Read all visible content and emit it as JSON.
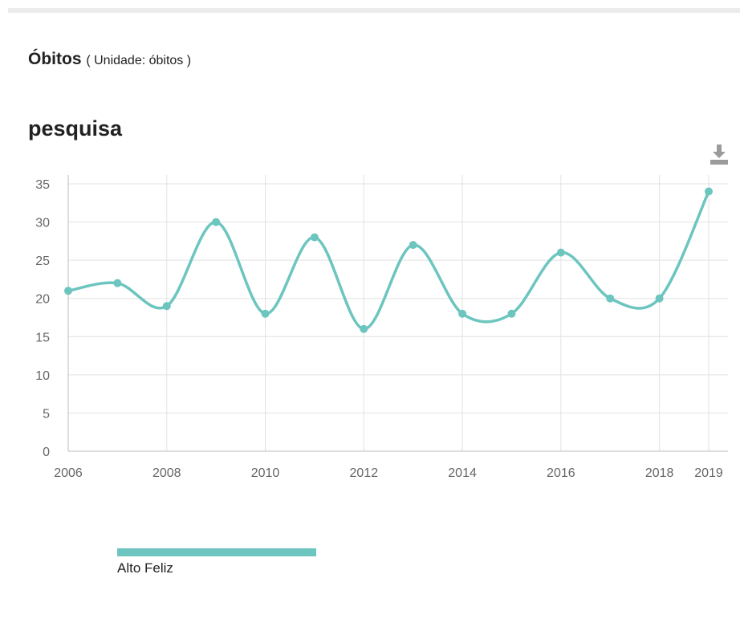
{
  "header": {
    "title": "Óbitos",
    "unit": "( Unidade: óbitos )"
  },
  "section": {
    "subtitle": "pesquisa"
  },
  "icons": {
    "download": "download-icon"
  },
  "colors": {
    "series": "#6cc5bf",
    "grid": "#e2e2e2",
    "axis": "#bdbdbd"
  },
  "chart_data": {
    "type": "line",
    "x": [
      2006,
      2007,
      2008,
      2009,
      2010,
      2011,
      2012,
      2013,
      2014,
      2015,
      2016,
      2017,
      2018,
      2019
    ],
    "series": [
      {
        "name": "Alto Feliz",
        "values": [
          21,
          22,
          19,
          30,
          18,
          28,
          16,
          27,
          18,
          18,
          26,
          20,
          20,
          34
        ]
      }
    ],
    "x_ticks": [
      "2006",
      "2008",
      "2010",
      "2012",
      "2014",
      "2016",
      "2018",
      "2019"
    ],
    "y_ticks": [
      "0",
      "5",
      "10",
      "15",
      "20",
      "25",
      "30",
      "35"
    ],
    "ylim": [
      0,
      35
    ],
    "xlim": [
      2006,
      2019
    ],
    "grid": true,
    "smooth": true,
    "legend": "bottom-left"
  }
}
